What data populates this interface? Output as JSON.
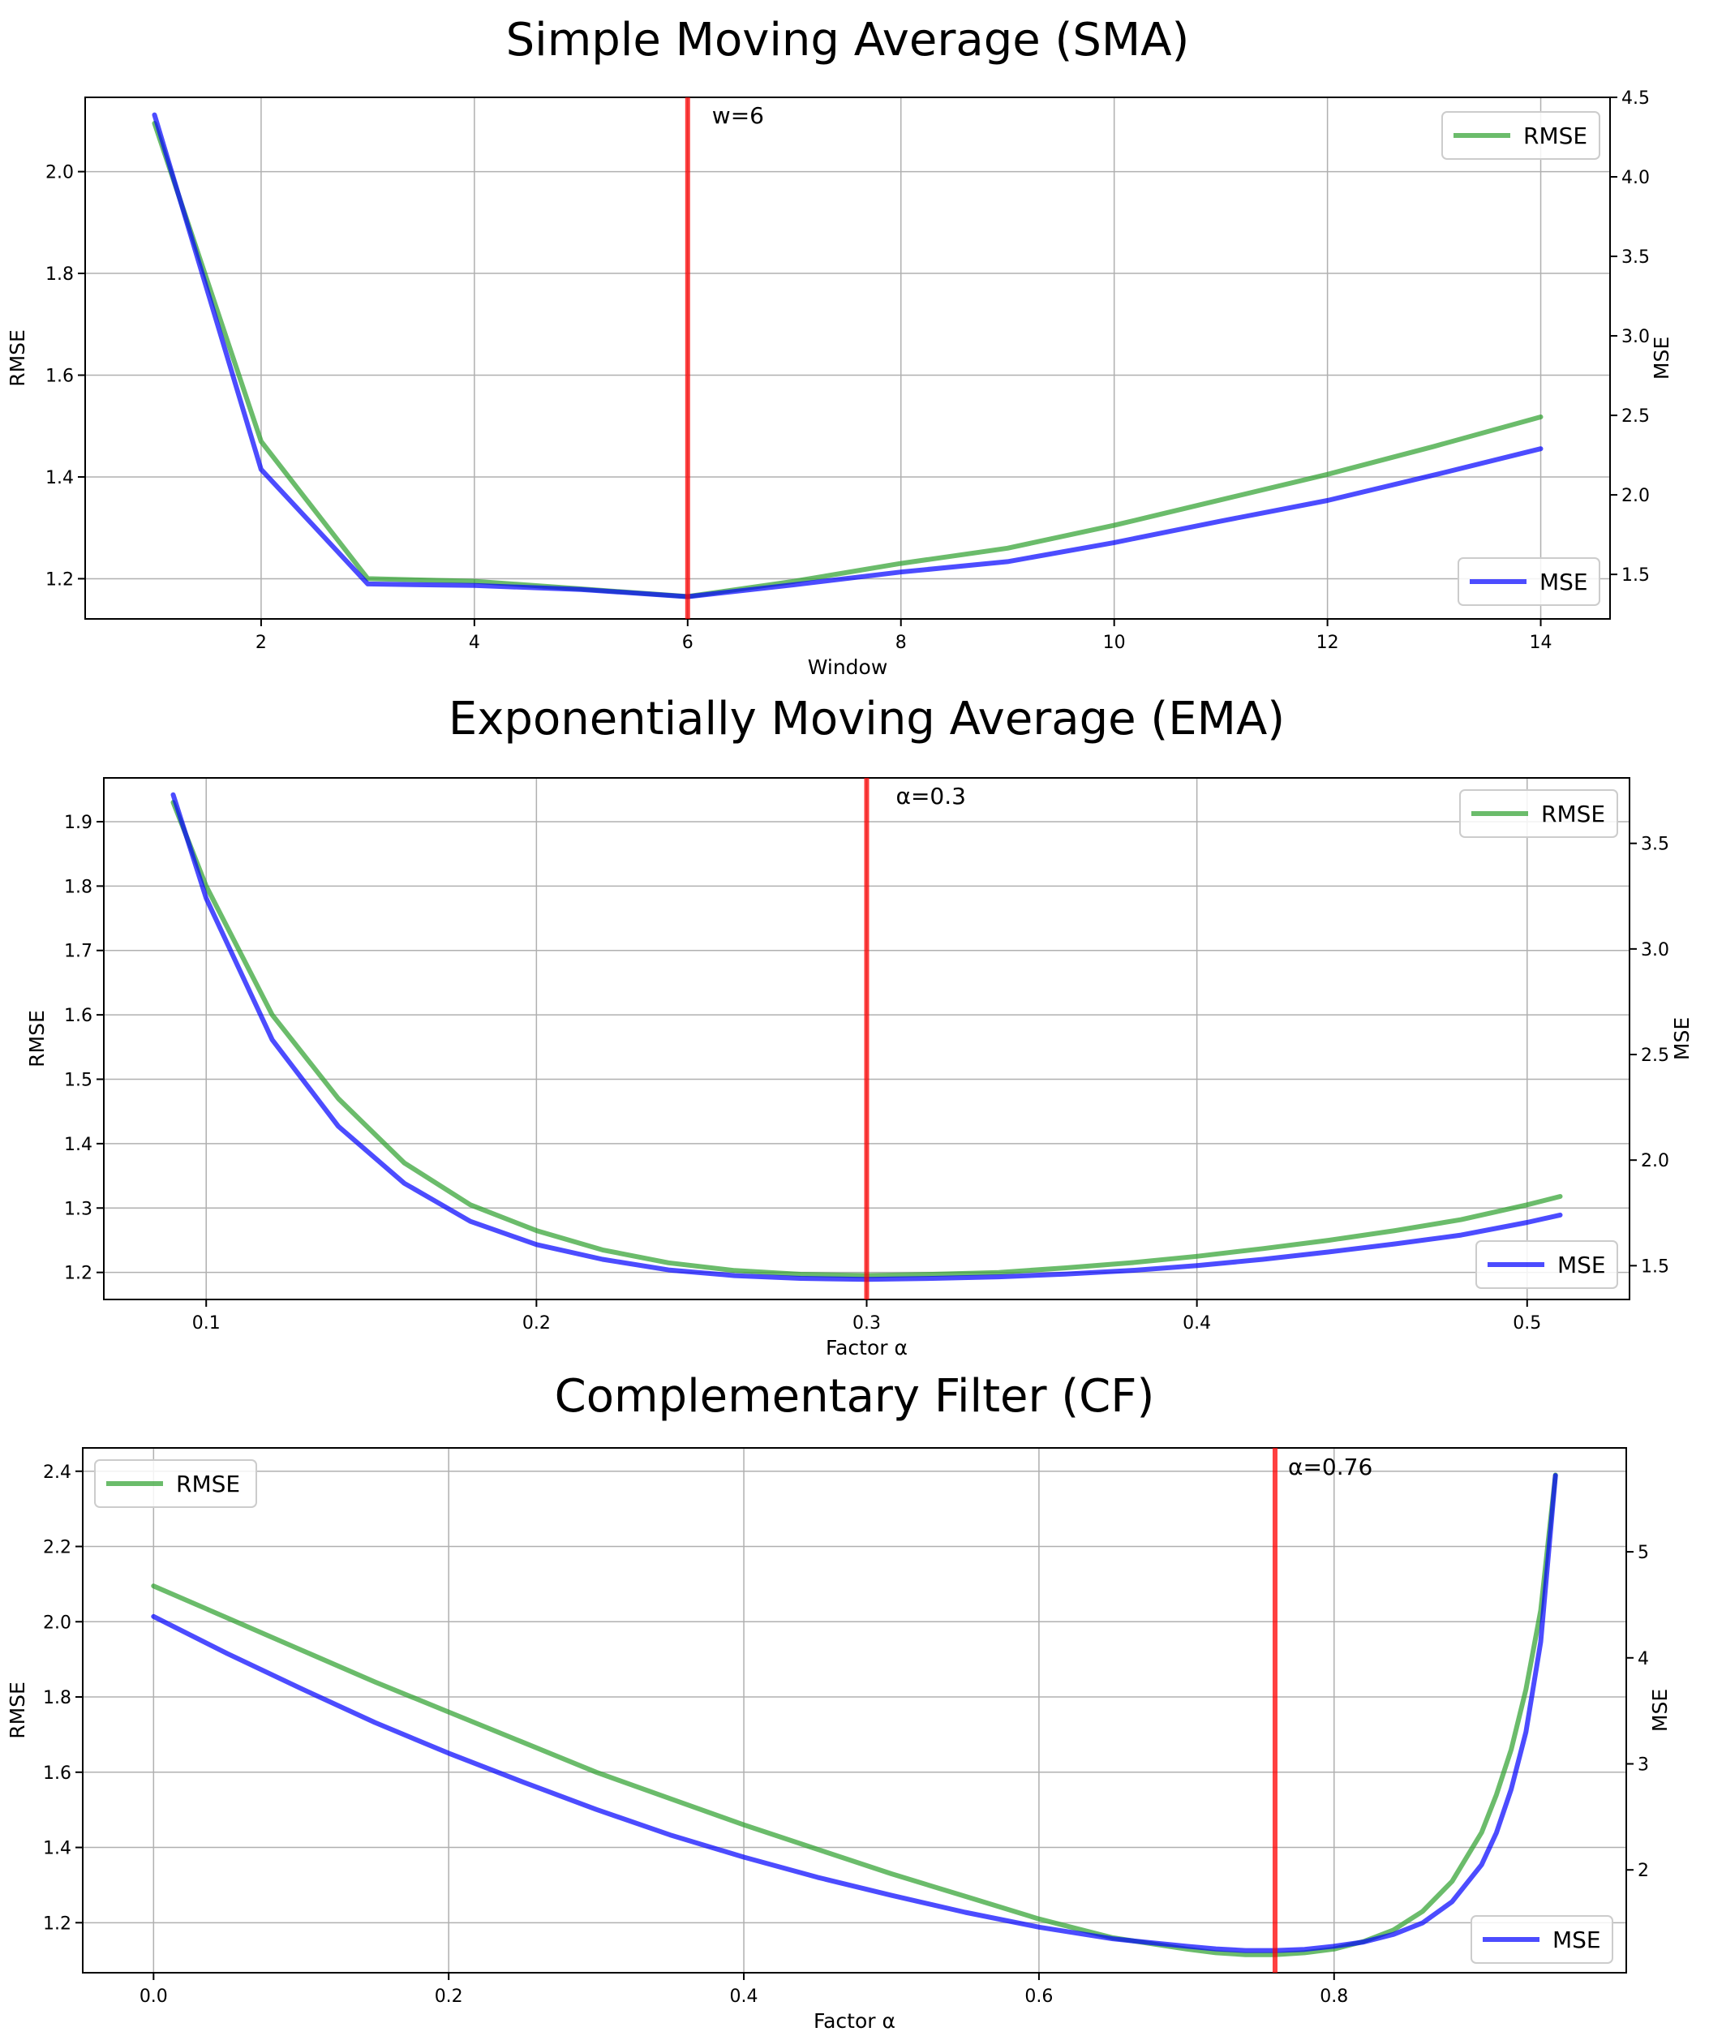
{
  "chart_data": [
    {
      "type": "line",
      "title": "Simple Moving Average (SMA)",
      "xlabel": "Window",
      "ylabel": "RMSE",
      "y2label": "MSE",
      "xlim": [
        0.35,
        14.65
      ],
      "ylim": [
        1.121,
        2.146
      ],
      "y2lim": [
        1.22,
        4.5
      ],
      "xticks": [
        2,
        4,
        6,
        8,
        10,
        12,
        14
      ],
      "xtick_labels": [
        "2",
        "4",
        "6",
        "8",
        "10",
        "12",
        "14"
      ],
      "yticks": [
        1.2,
        1.4,
        1.6,
        1.8,
        2.0
      ],
      "ytick_labels": [
        "1.2",
        "1.4",
        "1.6",
        "1.8",
        "2.0"
      ],
      "y2ticks": [
        1.5,
        2.0,
        2.5,
        3.0,
        3.5,
        4.0,
        4.5
      ],
      "y2tick_labels": [
        "1.5",
        "2.0",
        "2.5",
        "3.0",
        "3.5",
        "4.0",
        "4.5"
      ],
      "grid": true,
      "vline": {
        "x": 6,
        "label": "w=6"
      },
      "legend_rmse_position": "top-right",
      "legend_mse_position": "bottom-right",
      "series": [
        {
          "name": "RMSE",
          "axis": "left",
          "color": "#2ca02c",
          "x": [
            1,
            2,
            3,
            4,
            5,
            6,
            7,
            8,
            9,
            10,
            11,
            12,
            13,
            14
          ],
          "values": [
            2.095,
            1.47,
            1.2,
            1.195,
            1.18,
            1.165,
            1.195,
            1.23,
            1.26,
            1.305,
            1.355,
            1.405,
            1.46,
            1.518
          ]
        },
        {
          "name": "MSE",
          "axis": "right",
          "color": "#0000ff",
          "x": [
            1,
            2,
            3,
            4,
            5,
            6,
            7,
            8,
            9,
            10,
            11,
            12,
            13,
            14
          ],
          "values": [
            4.39,
            2.16,
            1.44,
            1.43,
            1.405,
            1.36,
            1.435,
            1.515,
            1.58,
            1.7,
            1.835,
            1.965,
            2.125,
            2.29
          ]
        }
      ]
    },
    {
      "type": "line",
      "title": "Exponentially Moving Average (EMA)",
      "xlabel": "Factor α",
      "ylabel": "RMSE",
      "y2label": "MSE",
      "xlim": [
        0.069,
        0.531
      ],
      "ylim": [
        1.158,
        1.968
      ],
      "y2lim": [
        1.34,
        3.81
      ],
      "xticks": [
        0.1,
        0.2,
        0.3,
        0.4,
        0.5
      ],
      "xtick_labels": [
        "0.1",
        "0.2",
        "0.3",
        "0.4",
        "0.5"
      ],
      "yticks": [
        1.2,
        1.3,
        1.4,
        1.5,
        1.6,
        1.7,
        1.8,
        1.9
      ],
      "ytick_labels": [
        "1.2",
        "1.3",
        "1.4",
        "1.5",
        "1.6",
        "1.7",
        "1.8",
        "1.9"
      ],
      "y2ticks": [
        1.5,
        2.0,
        2.5,
        3.0,
        3.5
      ],
      "y2tick_labels": [
        "1.5",
        "2.0",
        "2.5",
        "3.0",
        "3.5"
      ],
      "grid": true,
      "vline": {
        "x": 0.3,
        "label": "α=0.3"
      },
      "legend_rmse_position": "top-right",
      "legend_mse_position": "bottom-right",
      "series": [
        {
          "name": "RMSE",
          "axis": "left",
          "color": "#2ca02c",
          "x": [
            0.09,
            0.1,
            0.12,
            0.14,
            0.16,
            0.18,
            0.2,
            0.22,
            0.24,
            0.26,
            0.28,
            0.3,
            0.32,
            0.34,
            0.36,
            0.38,
            0.4,
            0.42,
            0.44,
            0.46,
            0.48,
            0.5,
            0.51
          ],
          "values": [
            1.93,
            1.8,
            1.6,
            1.47,
            1.37,
            1.305,
            1.265,
            1.235,
            1.215,
            1.203,
            1.197,
            1.195,
            1.197,
            1.2,
            1.207,
            1.215,
            1.225,
            1.237,
            1.25,
            1.265,
            1.282,
            1.305,
            1.318
          ]
        },
        {
          "name": "MSE",
          "axis": "right",
          "color": "#0000ff",
          "x": [
            0.09,
            0.1,
            0.12,
            0.14,
            0.16,
            0.18,
            0.2,
            0.22,
            0.24,
            0.26,
            0.28,
            0.3,
            0.32,
            0.34,
            0.36,
            0.38,
            0.4,
            0.42,
            0.44,
            0.46,
            0.48,
            0.5,
            0.51
          ],
          "values": [
            3.73,
            3.24,
            2.57,
            2.16,
            1.89,
            1.71,
            1.6,
            1.53,
            1.48,
            1.453,
            1.44,
            1.435,
            1.44,
            1.447,
            1.46,
            1.477,
            1.5,
            1.53,
            1.565,
            1.603,
            1.645,
            1.705,
            1.74
          ]
        }
      ]
    },
    {
      "type": "line",
      "title": "Complementary Filter (CF)",
      "xlabel": "Factor α",
      "ylabel": "RMSE",
      "y2label": "MSE",
      "xlim": [
        -0.048,
        0.998
      ],
      "ylim": [
        1.067,
        2.462
      ],
      "y2lim": [
        1.03,
        5.98
      ],
      "xticks": [
        0.0,
        0.2,
        0.4,
        0.6,
        0.8
      ],
      "xtick_labels": [
        "0.0",
        "0.2",
        "0.4",
        "0.6",
        "0.8"
      ],
      "yticks": [
        1.2,
        1.4,
        1.6,
        1.8,
        2.0,
        2.2,
        2.4
      ],
      "ytick_labels": [
        "1.2",
        "1.4",
        "1.6",
        "1.8",
        "2.0",
        "2.2",
        "2.4"
      ],
      "y2ticks": [
        2,
        3,
        4,
        5
      ],
      "y2tick_labels": [
        "2",
        "3",
        "4",
        "5"
      ],
      "grid": true,
      "vline": {
        "x": 0.76,
        "label": "α=0.76"
      },
      "legend_rmse_position": "top-left",
      "legend_mse_position": "bottom-right",
      "series": [
        {
          "name": "RMSE",
          "axis": "left",
          "color": "#2ca02c",
          "x": [
            0.0,
            0.05,
            0.1,
            0.15,
            0.2,
            0.25,
            0.3,
            0.35,
            0.4,
            0.45,
            0.5,
            0.55,
            0.6,
            0.65,
            0.7,
            0.72,
            0.74,
            0.76,
            0.78,
            0.8,
            0.82,
            0.84,
            0.86,
            0.88,
            0.9,
            0.91,
            0.92,
            0.93,
            0.94,
            0.95
          ],
          "values": [
            2.095,
            2.01,
            1.925,
            1.84,
            1.76,
            1.68,
            1.6,
            1.53,
            1.46,
            1.395,
            1.33,
            1.27,
            1.21,
            1.16,
            1.13,
            1.12,
            1.115,
            1.115,
            1.12,
            1.13,
            1.15,
            1.18,
            1.23,
            1.31,
            1.44,
            1.54,
            1.66,
            1.82,
            2.03,
            2.39
          ]
        },
        {
          "name": "MSE",
          "axis": "right",
          "color": "#0000ff",
          "x": [
            0.0,
            0.05,
            0.1,
            0.15,
            0.2,
            0.25,
            0.3,
            0.35,
            0.4,
            0.45,
            0.5,
            0.55,
            0.6,
            0.65,
            0.7,
            0.72,
            0.74,
            0.76,
            0.78,
            0.8,
            0.82,
            0.84,
            0.86,
            0.88,
            0.9,
            0.91,
            0.92,
            0.93,
            0.94,
            0.95
          ],
          "values": [
            4.39,
            4.04,
            3.71,
            3.39,
            3.1,
            2.83,
            2.57,
            2.33,
            2.12,
            1.93,
            1.76,
            1.6,
            1.46,
            1.35,
            1.28,
            1.255,
            1.24,
            1.24,
            1.25,
            1.28,
            1.32,
            1.39,
            1.5,
            1.7,
            2.05,
            2.35,
            2.76,
            3.3,
            4.15,
            5.72
          ]
        }
      ]
    }
  ]
}
